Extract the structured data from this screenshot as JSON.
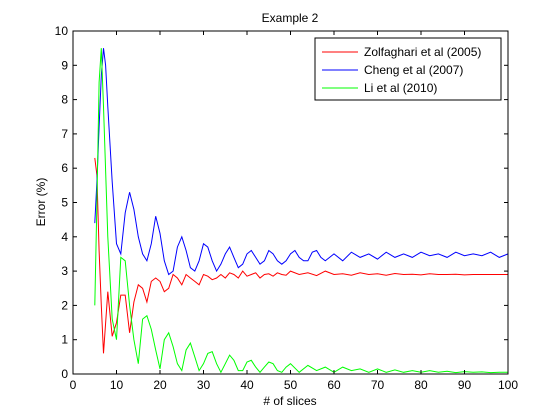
{
  "chart_data": {
    "type": "line",
    "title": "Example 2",
    "xlabel": "# of slices",
    "ylabel": "Error (%)",
    "xlim": [
      0,
      100
    ],
    "ylim": [
      0,
      10
    ],
    "xticks": [
      0,
      10,
      20,
      30,
      40,
      50,
      60,
      70,
      80,
      90,
      100
    ],
    "yticks": [
      0,
      1,
      2,
      3,
      4,
      5,
      6,
      7,
      8,
      9,
      10
    ],
    "grid": false,
    "legend_position": "top-right",
    "series": [
      {
        "name": "Zolfaghari et al (2005)",
        "color": "#ff0000",
        "points": [
          [
            5,
            6.3
          ],
          [
            5.5,
            5.8
          ],
          [
            6,
            3.6
          ],
          [
            6.5,
            2.0
          ],
          [
            7,
            0.6
          ],
          [
            8,
            2.4
          ],
          [
            9,
            1.1
          ],
          [
            10,
            1.5
          ],
          [
            11,
            2.3
          ],
          [
            12,
            2.3
          ],
          [
            13,
            1.2
          ],
          [
            14,
            2.1
          ],
          [
            15,
            2.6
          ],
          [
            16,
            2.5
          ],
          [
            17,
            2.1
          ],
          [
            18,
            2.7
          ],
          [
            19,
            2.8
          ],
          [
            20,
            2.7
          ],
          [
            21,
            2.4
          ],
          [
            22,
            2.5
          ],
          [
            23,
            2.9
          ],
          [
            24,
            2.8
          ],
          [
            25,
            2.6
          ],
          [
            26,
            2.9
          ],
          [
            27,
            2.8
          ],
          [
            28,
            2.7
          ],
          [
            29,
            2.6
          ],
          [
            30,
            2.9
          ],
          [
            31,
            2.85
          ],
          [
            32,
            2.75
          ],
          [
            33,
            2.8
          ],
          [
            34,
            2.9
          ],
          [
            35,
            2.8
          ],
          [
            36,
            2.95
          ],
          [
            37,
            2.9
          ],
          [
            38,
            2.8
          ],
          [
            39,
            3.0
          ],
          [
            40,
            2.85
          ],
          [
            41,
            2.9
          ],
          [
            42,
            2.95
          ],
          [
            43,
            2.8
          ],
          [
            44,
            2.9
          ],
          [
            45,
            2.92
          ],
          [
            46,
            2.85
          ],
          [
            47,
            2.95
          ],
          [
            48,
            2.9
          ],
          [
            49,
            2.88
          ],
          [
            50,
            3.0
          ],
          [
            52,
            2.9
          ],
          [
            54,
            2.95
          ],
          [
            56,
            2.87
          ],
          [
            58,
            3.0
          ],
          [
            60,
            2.9
          ],
          [
            62,
            2.92
          ],
          [
            64,
            2.88
          ],
          [
            66,
            2.95
          ],
          [
            68,
            2.9
          ],
          [
            70,
            2.92
          ],
          [
            72,
            2.88
          ],
          [
            74,
            2.93
          ],
          [
            76,
            2.9
          ],
          [
            78,
            2.91
          ],
          [
            80,
            2.89
          ],
          [
            82,
            2.92
          ],
          [
            84,
            2.9
          ],
          [
            86,
            2.9
          ],
          [
            88,
            2.91
          ],
          [
            90,
            2.89
          ],
          [
            92,
            2.9
          ],
          [
            94,
            2.9
          ],
          [
            96,
            2.9
          ],
          [
            98,
            2.9
          ],
          [
            100,
            2.9
          ]
        ]
      },
      {
        "name": "Cheng et al (2007)",
        "color": "#0000ff",
        "points": [
          [
            5,
            4.4
          ],
          [
            5.5,
            5.6
          ],
          [
            6,
            7.2
          ],
          [
            6.5,
            8.7
          ],
          [
            7,
            9.5
          ],
          [
            7.5,
            9.0
          ],
          [
            8,
            7.8
          ],
          [
            9,
            5.6
          ],
          [
            10,
            3.8
          ],
          [
            11,
            3.5
          ],
          [
            12,
            4.7
          ],
          [
            13,
            5.3
          ],
          [
            14,
            4.8
          ],
          [
            15,
            4.0
          ],
          [
            16,
            3.5
          ],
          [
            17,
            3.3
          ],
          [
            18,
            3.8
          ],
          [
            19,
            4.6
          ],
          [
            20,
            4.1
          ],
          [
            21,
            3.3
          ],
          [
            22,
            2.9
          ],
          [
            23,
            3.0
          ],
          [
            24,
            3.7
          ],
          [
            25,
            4.0
          ],
          [
            26,
            3.6
          ],
          [
            27,
            3.1
          ],
          [
            28,
            3.0
          ],
          [
            29,
            3.3
          ],
          [
            30,
            3.8
          ],
          [
            31,
            3.7
          ],
          [
            32,
            3.3
          ],
          [
            33,
            3.0
          ],
          [
            34,
            3.2
          ],
          [
            35,
            3.5
          ],
          [
            36,
            3.7
          ],
          [
            37,
            3.4
          ],
          [
            38,
            3.1
          ],
          [
            39,
            3.2
          ],
          [
            40,
            3.5
          ],
          [
            41,
            3.6
          ],
          [
            42,
            3.4
          ],
          [
            43,
            3.2
          ],
          [
            44,
            3.3
          ],
          [
            45,
            3.6
          ],
          [
            46,
            3.5
          ],
          [
            47,
            3.3
          ],
          [
            48,
            3.2
          ],
          [
            49,
            3.3
          ],
          [
            50,
            3.5
          ],
          [
            51,
            3.6
          ],
          [
            52,
            3.4
          ],
          [
            53,
            3.3
          ],
          [
            54,
            3.3
          ],
          [
            55,
            3.55
          ],
          [
            56,
            3.6
          ],
          [
            57,
            3.4
          ],
          [
            58,
            3.3
          ],
          [
            59,
            3.4
          ],
          [
            60,
            3.5
          ],
          [
            62,
            3.3
          ],
          [
            64,
            3.55
          ],
          [
            66,
            3.4
          ],
          [
            68,
            3.5
          ],
          [
            70,
            3.35
          ],
          [
            72,
            3.55
          ],
          [
            74,
            3.4
          ],
          [
            76,
            3.5
          ],
          [
            78,
            3.4
          ],
          [
            80,
            3.55
          ],
          [
            82,
            3.45
          ],
          [
            84,
            3.5
          ],
          [
            86,
            3.4
          ],
          [
            88,
            3.55
          ],
          [
            90,
            3.45
          ],
          [
            92,
            3.5
          ],
          [
            94,
            3.45
          ],
          [
            96,
            3.55
          ],
          [
            98,
            3.4
          ],
          [
            100,
            3.5
          ]
        ]
      },
      {
        "name": "Li et al (2010)",
        "color": "#00ff00",
        "points": [
          [
            5,
            2.0
          ],
          [
            5.5,
            5.0
          ],
          [
            6,
            8.5
          ],
          [
            6.5,
            9.5
          ],
          [
            7,
            7.8
          ],
          [
            8,
            4.0
          ],
          [
            9,
            1.6
          ],
          [
            10,
            1.0
          ],
          [
            11,
            3.4
          ],
          [
            12,
            3.3
          ],
          [
            13,
            2.0
          ],
          [
            14,
            1.0
          ],
          [
            15,
            0.3
          ],
          [
            16,
            1.6
          ],
          [
            17,
            1.7
          ],
          [
            18,
            1.3
          ],
          [
            19,
            0.7
          ],
          [
            20,
            0.15
          ],
          [
            21,
            1.0
          ],
          [
            22,
            1.2
          ],
          [
            23,
            0.8
          ],
          [
            24,
            0.3
          ],
          [
            25,
            0.1
          ],
          [
            26,
            0.7
          ],
          [
            27,
            0.9
          ],
          [
            28,
            0.5
          ],
          [
            29,
            0.1
          ],
          [
            30,
            0.3
          ],
          [
            31,
            0.6
          ],
          [
            32,
            0.65
          ],
          [
            33,
            0.3
          ],
          [
            34,
            0.05
          ],
          [
            35,
            0.3
          ],
          [
            36,
            0.55
          ],
          [
            37,
            0.4
          ],
          [
            38,
            0.1
          ],
          [
            39,
            0.1
          ],
          [
            40,
            0.35
          ],
          [
            41,
            0.4
          ],
          [
            42,
            0.2
          ],
          [
            43,
            0.05
          ],
          [
            44,
            0.2
          ],
          [
            45,
            0.35
          ],
          [
            46,
            0.3
          ],
          [
            47,
            0.1
          ],
          [
            48,
            0.05
          ],
          [
            49,
            0.2
          ],
          [
            50,
            0.3
          ],
          [
            52,
            0.05
          ],
          [
            54,
            0.25
          ],
          [
            56,
            0.1
          ],
          [
            58,
            0.2
          ],
          [
            60,
            0.05
          ],
          [
            62,
            0.2
          ],
          [
            64,
            0.1
          ],
          [
            66,
            0.15
          ],
          [
            68,
            0.05
          ],
          [
            70,
            0.15
          ],
          [
            72,
            0.05
          ],
          [
            74,
            0.12
          ],
          [
            76,
            0.05
          ],
          [
            78,
            0.1
          ],
          [
            80,
            0.05
          ],
          [
            82,
            0.1
          ],
          [
            84,
            0.05
          ],
          [
            86,
            0.08
          ],
          [
            88,
            0.04
          ],
          [
            90,
            0.07
          ],
          [
            92,
            0.05
          ],
          [
            94,
            0.06
          ],
          [
            96,
            0.04
          ],
          [
            98,
            0.05
          ],
          [
            100,
            0.05
          ]
        ]
      }
    ]
  }
}
